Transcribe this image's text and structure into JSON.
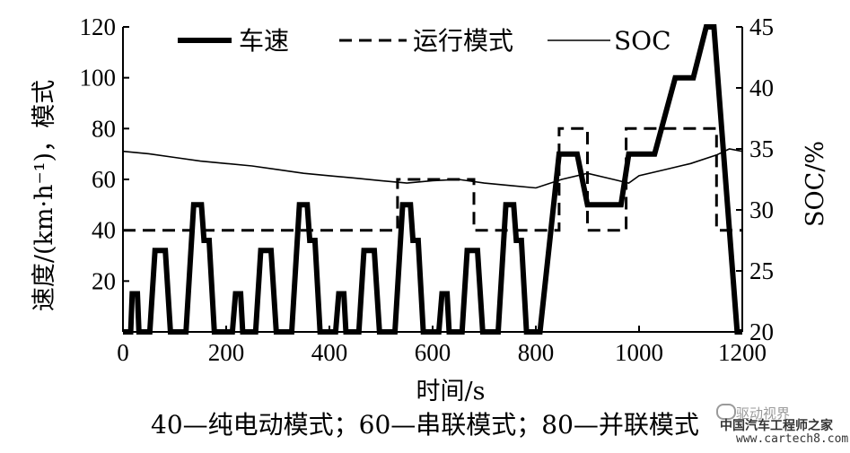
{
  "chart_data": {
    "type": "line",
    "xlabel": "时间/s",
    "ylabel_left": "速度/(km·h⁻¹)，模式",
    "ylabel_right": "SOC/%",
    "xlim": [
      0,
      1200
    ],
    "ylim_left": [
      0,
      120
    ],
    "ylim_right": [
      20,
      45
    ],
    "x_ticks": [
      0,
      200,
      400,
      600,
      800,
      1000,
      1200
    ],
    "y_left_ticks": [
      20,
      40,
      60,
      80,
      100,
      120
    ],
    "y_right_ticks": [
      20,
      25,
      30,
      35,
      40,
      45
    ],
    "legend_position": "top",
    "grid": false,
    "caption": "40—纯电动模式；60—串联模式；80—并联模式",
    "series": [
      {
        "name": "车速",
        "style": "thick-solid",
        "axis": "left",
        "points": [
          [
            0,
            0
          ],
          [
            15,
            0
          ],
          [
            18,
            15
          ],
          [
            28,
            15
          ],
          [
            31,
            0
          ],
          [
            52,
            0
          ],
          [
            62,
            32
          ],
          [
            82,
            32
          ],
          [
            92,
            0
          ],
          [
            122,
            0
          ],
          [
            137,
            50
          ],
          [
            152,
            50
          ],
          [
            157,
            36
          ],
          [
            167,
            36
          ],
          [
            177,
            0
          ],
          [
            212,
            0
          ],
          [
            218,
            15
          ],
          [
            228,
            15
          ],
          [
            232,
            0
          ],
          [
            257,
            0
          ],
          [
            267,
            32
          ],
          [
            287,
            32
          ],
          [
            297,
            0
          ],
          [
            327,
            0
          ],
          [
            342,
            50
          ],
          [
            357,
            50
          ],
          [
            362,
            36
          ],
          [
            372,
            36
          ],
          [
            382,
            0
          ],
          [
            412,
            0
          ],
          [
            418,
            15
          ],
          [
            428,
            15
          ],
          [
            432,
            0
          ],
          [
            457,
            0
          ],
          [
            467,
            32
          ],
          [
            487,
            32
          ],
          [
            497,
            0
          ],
          [
            527,
            0
          ],
          [
            542,
            50
          ],
          [
            557,
            50
          ],
          [
            562,
            36
          ],
          [
            572,
            36
          ],
          [
            582,
            0
          ],
          [
            612,
            0
          ],
          [
            618,
            15
          ],
          [
            628,
            15
          ],
          [
            632,
            0
          ],
          [
            657,
            0
          ],
          [
            667,
            32
          ],
          [
            687,
            32
          ],
          [
            697,
            0
          ],
          [
            727,
            0
          ],
          [
            742,
            50
          ],
          [
            757,
            50
          ],
          [
            762,
            36
          ],
          [
            772,
            36
          ],
          [
            782,
            0
          ],
          [
            808,
            0
          ],
          [
            845,
            70
          ],
          [
            880,
            70
          ],
          [
            900,
            50
          ],
          [
            965,
            50
          ],
          [
            980,
            70
          ],
          [
            1030,
            70
          ],
          [
            1070,
            100
          ],
          [
            1105,
            100
          ],
          [
            1130,
            120
          ],
          [
            1145,
            120
          ],
          [
            1190,
            0
          ],
          [
            1200,
            0
          ]
        ]
      },
      {
        "name": "运行模式",
        "style": "dashed",
        "axis": "left",
        "points": [
          [
            0,
            40
          ],
          [
            532,
            40
          ],
          [
            532,
            60
          ],
          [
            680,
            60
          ],
          [
            680,
            40
          ],
          [
            845,
            40
          ],
          [
            845,
            80
          ],
          [
            900,
            80
          ],
          [
            900,
            40
          ],
          [
            975,
            40
          ],
          [
            975,
            80
          ],
          [
            1150,
            80
          ],
          [
            1150,
            40
          ],
          [
            1200,
            40
          ]
        ]
      },
      {
        "name": "SOC",
        "style": "thin-solid",
        "axis": "right",
        "points": [
          [
            0,
            34.8
          ],
          [
            50,
            34.6
          ],
          [
            100,
            34.3
          ],
          [
            150,
            34.0
          ],
          [
            200,
            33.8
          ],
          [
            250,
            33.6
          ],
          [
            300,
            33.3
          ],
          [
            350,
            33.0
          ],
          [
            400,
            32.8
          ],
          [
            450,
            32.6
          ],
          [
            500,
            32.4
          ],
          [
            550,
            32.2
          ],
          [
            600,
            32.4
          ],
          [
            650,
            32.5
          ],
          [
            700,
            32.2
          ],
          [
            750,
            32.0
          ],
          [
            800,
            31.8
          ],
          [
            850,
            32.5
          ],
          [
            900,
            33.0
          ],
          [
            950,
            32.5
          ],
          [
            980,
            32.2
          ],
          [
            1000,
            32.8
          ],
          [
            1050,
            33.3
          ],
          [
            1100,
            33.8
          ],
          [
            1150,
            34.5
          ],
          [
            1175,
            35.0
          ],
          [
            1200,
            34.8
          ]
        ]
      }
    ]
  },
  "watermark": {
    "line1": "驱动视界",
    "line2": "中国汽车工程师之家",
    "line3": "www.cartech8.com"
  }
}
